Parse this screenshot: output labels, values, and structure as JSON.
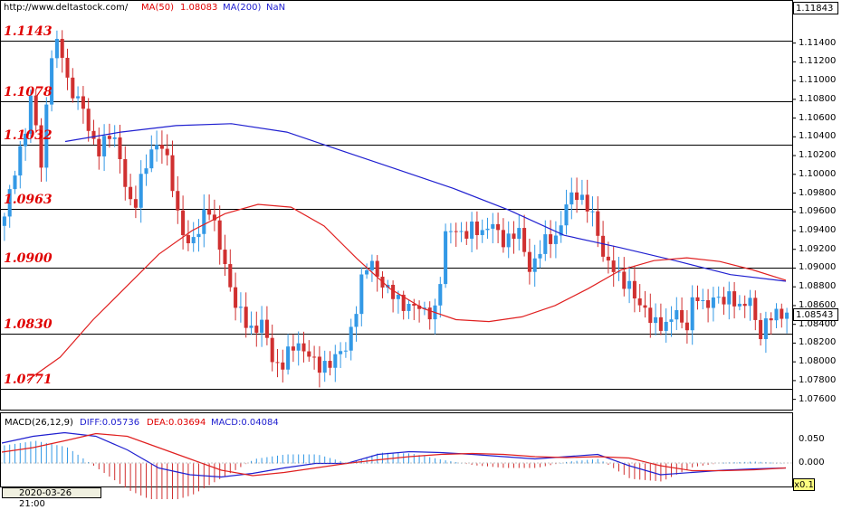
{
  "header": {
    "url": "http://www.deltastock.com/",
    "ma50_label": "MA(50)",
    "ma50_value": "1.08083",
    "ma200_label": "MA(200)",
    "ma200_value": "NaN"
  },
  "price_box_top": "1.11843",
  "price_box_current": "1.08543",
  "macd_header": {
    "name": "MACD(26,12,9)",
    "diff": "DIFF:0.05736",
    "dea": "DEA:0.03694",
    "macd": "MACD:0.04084"
  },
  "bottom_timestamp": "2020-03-26 21:00",
  "zoom_label": "x0.1",
  "colors": {
    "up_candle": "#3399e6",
    "down_candle": "#d03030",
    "ma50": "#e02020",
    "ma200": "#2020d0",
    "level_text": "#e00000",
    "diff_line": "#2020d0",
    "dea_line": "#e02020"
  },
  "chart_data": {
    "type": "candlestick",
    "y_range": [
      1.075,
      1.1184
    ],
    "y_ticks": [
      "1.11400",
      "1.11200",
      "1.11000",
      "1.10800",
      "1.10600",
      "1.10400",
      "1.10200",
      "1.10000",
      "1.09800",
      "1.09600",
      "1.09400",
      "1.09200",
      "1.09000",
      "1.08800",
      "1.08600",
      "1.08400",
      "1.08200",
      "1.08000",
      "1.07800",
      "1.07600"
    ],
    "levels": [
      "1.1143",
      "1.1078",
      "1.1032",
      "1.0963",
      "1.0900",
      "1.0830",
      "1.0771"
    ],
    "close_path": [
      1.0955,
      1.0995,
      1.104,
      1.1085,
      1.1005,
      1.113,
      1.114,
      1.109,
      1.1085,
      1.105,
      1.1025,
      1.104,
      1.1035,
      1.1,
      1.0955,
      1.1,
      1.103,
      1.103,
      1.1005,
      1.095,
      1.092,
      1.094,
      1.097,
      1.0935,
      1.0905,
      1.086,
      1.0845,
      1.0835,
      1.084,
      1.0805,
      1.0795,
      1.081,
      1.082,
      1.081,
      1.079,
      1.08,
      1.0805,
      1.081,
      1.085,
      1.0895,
      1.0905,
      1.0885,
      1.087,
      1.0865,
      1.086,
      1.0855,
      1.0855,
      1.0855,
      1.094,
      1.0945,
      1.093,
      1.0945,
      1.094,
      1.0945,
      1.093,
      1.0935,
      1.0935,
      1.09,
      1.0915,
      1.093,
      1.0935,
      1.0965,
      1.098,
      1.0975,
      1.095,
      1.0915,
      1.0905,
      1.088,
      1.0885,
      1.086,
      1.0845,
      1.0845,
      1.0835,
      1.0855,
      1.0835,
      1.087,
      1.086,
      1.087,
      1.086,
      1.0875,
      1.0855,
      1.0865,
      1.083,
      1.0845,
      1.085,
      1.0855
    ],
    "ma50_series": [
      1.078,
      1.0805,
      1.0845,
      1.088,
      1.0915,
      1.094,
      1.0958,
      1.0968,
      1.0965,
      1.0945,
      1.091,
      1.0878,
      1.0857,
      1.0845,
      1.0843,
      1.0848,
      1.086,
      1.0878,
      1.0898,
      1.0908,
      1.0911,
      1.0907,
      1.0898,
      1.0887
    ],
    "ma200_series": [
      1.1035,
      1.1045,
      1.1052,
      1.1054,
      1.1045,
      1.1025,
      1.1005,
      1.0985,
      1.0962,
      1.0935,
      1.0922,
      1.0908,
      1.0893,
      1.0886
    ],
    "macd": {
      "y_ticks": [
        "0.050",
        "0.000"
      ],
      "diff_series": [
        0.045,
        0.06,
        0.068,
        0.06,
        0.03,
        -0.01,
        -0.025,
        -0.03,
        -0.022,
        -0.01,
        0.0,
        0.0,
        0.02,
        0.026,
        0.024,
        0.02,
        0.015,
        0.01,
        0.015,
        0.02,
        -0.005,
        -0.025,
        -0.02,
        -0.015,
        -0.012,
        -0.01
      ],
      "dea_series": [
        0.025,
        0.035,
        0.05,
        0.066,
        0.06,
        0.035,
        0.01,
        -0.015,
        -0.027,
        -0.02,
        -0.01,
        0.0,
        0.008,
        0.015,
        0.02,
        0.022,
        0.02,
        0.015,
        0.013,
        0.015,
        0.012,
        -0.005,
        -0.016,
        -0.016,
        -0.014,
        -0.01
      ]
    }
  }
}
